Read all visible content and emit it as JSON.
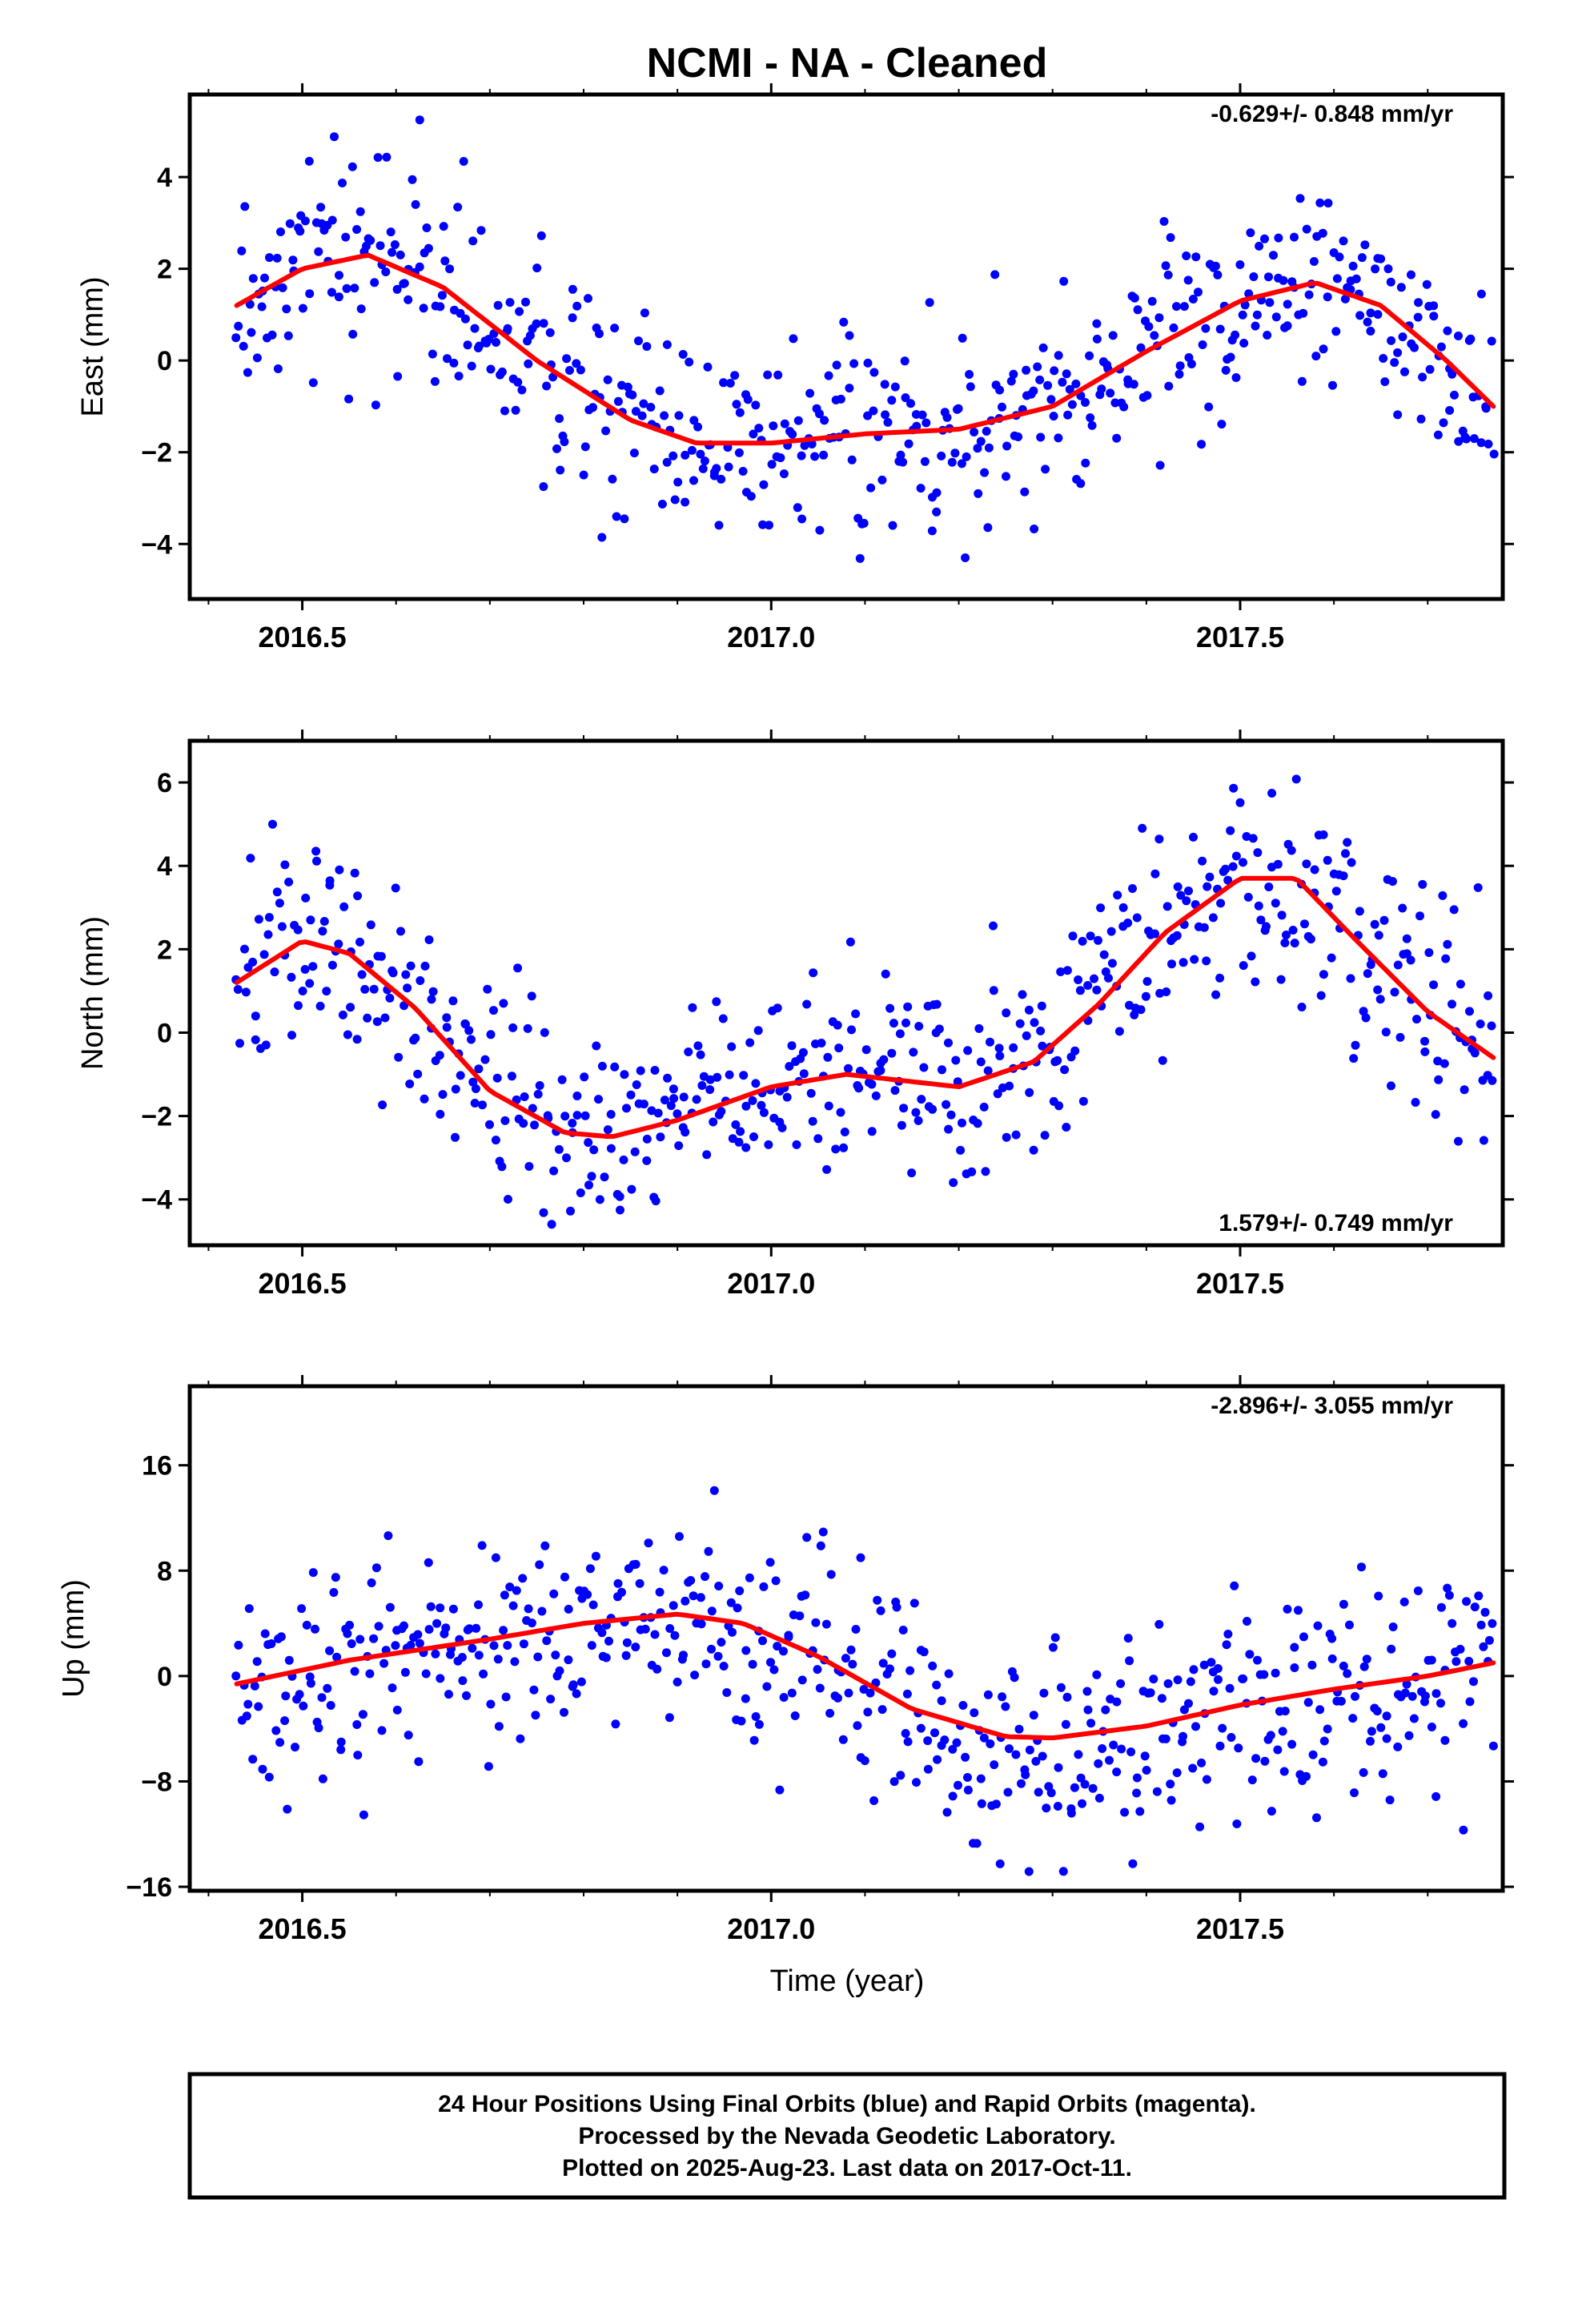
{
  "figure": {
    "title": "NCMI  - NA - Cleaned",
    "x_axis_label": "Time (year)",
    "footer_lines": [
      "24 Hour Positions Using Final Orbits (blue) and Rapid Orbits (magenta).",
      "Processed by the Nevada Geodetic Laboratory.",
      "Plotted on 2025-Aug-23. Last data on 2017-Oct-11."
    ]
  },
  "chart_data": [
    {
      "type": "scatter",
      "ylabel": "East (mm)",
      "rate_label": "-0.629+/- 0.848 mm/yr",
      "rate_position": "top-right",
      "xlim": [
        2016.38,
        2017.78
      ],
      "ylim": [
        -5.2,
        5.8
      ],
      "xticks": [
        2016.5,
        2017.0,
        2017.5
      ],
      "xtick_labels": [
        "2016.5",
        "2017.0",
        "2017.5"
      ],
      "yticks": [
        -4,
        -2,
        0,
        2,
        4
      ],
      "ytick_labels": [
        "−4",
        "−2",
        "0",
        "2",
        "4"
      ],
      "point_color": "#0000ff",
      "fit_color": "#ff0000",
      "fit": {
        "x": [
          2016.43,
          2016.5,
          2016.57,
          2016.65,
          2016.75,
          2016.85,
          2016.92,
          2017.0,
          2017.1,
          2017.2,
          2017.3,
          2017.4,
          2017.5,
          2017.58,
          2017.65,
          2017.72,
          2017.77
        ],
        "y": [
          1.2,
          2.0,
          2.3,
          1.6,
          0.0,
          -1.3,
          -1.8,
          -1.8,
          -1.6,
          -1.5,
          -1.0,
          0.2,
          1.3,
          1.7,
          1.2,
          0.0,
          -1.0
        ]
      },
      "seed": 17
    },
    {
      "type": "scatter",
      "ylabel": "North (mm)",
      "rate_label": "1.579+/- 0.749 mm/yr",
      "rate_position": "bottom-right",
      "xlim": [
        2016.38,
        2017.78
      ],
      "ylim": [
        -5.1,
        7.0
      ],
      "xticks": [
        2016.5,
        2017.0,
        2017.5
      ],
      "xtick_labels": [
        "2016.5",
        "2017.0",
        "2017.5"
      ],
      "yticks": [
        -4,
        -2,
        0,
        2,
        4,
        6
      ],
      "ytick_labels": [
        "−4",
        "−2",
        "0",
        "2",
        "4",
        "6"
      ],
      "point_color": "#0000ff",
      "fit_color": "#ff0000",
      "fit": {
        "x": [
          2016.43,
          2016.5,
          2016.55,
          2016.62,
          2016.7,
          2016.78,
          2016.83,
          2016.9,
          2017.0,
          2017.08,
          2017.2,
          2017.28,
          2017.35,
          2017.42,
          2017.5,
          2017.56,
          2017.62,
          2017.7,
          2017.77
        ],
        "y": [
          1.2,
          2.2,
          1.9,
          0.6,
          -1.4,
          -2.4,
          -2.5,
          -2.1,
          -1.3,
          -1.0,
          -1.3,
          -0.7,
          0.7,
          2.4,
          3.7,
          3.7,
          2.3,
          0.5,
          -0.6
        ]
      },
      "seed": 41
    },
    {
      "type": "scatter",
      "ylabel": "Up (mm)",
      "rate_label": "-2.896+/- 3.055 mm/yr",
      "rate_position": "top-right",
      "xlim": [
        2016.38,
        2017.78
      ],
      "ylim": [
        -16.3,
        22.0
      ],
      "xticks": [
        2016.5,
        2017.0,
        2017.5
      ],
      "xtick_labels": [
        "2016.5",
        "2017.0",
        "2017.5"
      ],
      "yticks": [
        -16,
        -8,
        0,
        8,
        16
      ],
      "ytick_labels": [
        "−16",
        "−8",
        "0",
        "8",
        "16"
      ],
      "point_color": "#0000ff",
      "fit_color": "#ff0000",
      "fit": {
        "x": [
          2016.43,
          2016.55,
          2016.7,
          2016.8,
          2016.9,
          2016.97,
          2017.05,
          2017.15,
          2017.25,
          2017.3,
          2017.4,
          2017.5,
          2017.6,
          2017.7,
          2017.77
        ],
        "y": [
          -0.6,
          1.2,
          2.8,
          4.0,
          4.7,
          4.0,
          1.5,
          -2.5,
          -4.6,
          -4.7,
          -3.8,
          -2.2,
          -1.0,
          0.0,
          1.0
        ]
      },
      "seed": 73
    }
  ]
}
